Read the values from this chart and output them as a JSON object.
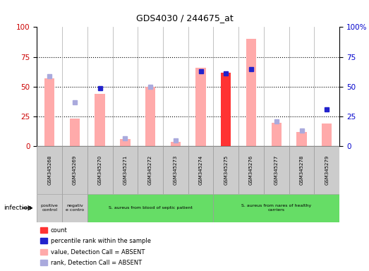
{
  "title": "GDS4030 / 244675_at",
  "samples": [
    "GSM345268",
    "GSM345269",
    "GSM345270",
    "GSM345271",
    "GSM345272",
    "GSM345273",
    "GSM345274",
    "GSM345275",
    "GSM345276",
    "GSM345277",
    "GSM345278",
    "GSM345279"
  ],
  "bar_values": [
    57,
    23,
    44,
    6,
    50,
    4,
    66,
    62,
    90,
    20,
    12,
    19
  ],
  "bar_absent": [
    true,
    true,
    true,
    true,
    true,
    true,
    true,
    false,
    true,
    true,
    true,
    true
  ],
  "rank_values": [
    59,
    37,
    49,
    7,
    50,
    5,
    63,
    61,
    65,
    21,
    13,
    31
  ],
  "rank_absent": [
    true,
    true,
    false,
    true,
    true,
    true,
    false,
    false,
    false,
    true,
    true,
    false
  ],
  "ylim": [
    0,
    100
  ],
  "yticks": [
    0,
    25,
    50,
    75,
    100
  ],
  "groups": [
    {
      "label": "positive\ncontrol",
      "start": 0,
      "end": 1,
      "color": "#cccccc"
    },
    {
      "label": "negativ\ne contro",
      "start": 1,
      "end": 2,
      "color": "#cccccc"
    },
    {
      "label": "S. aureus from blood of septic patient",
      "start": 2,
      "end": 7,
      "color": "#66dd66"
    },
    {
      "label": "S. aureus from nares of healthy\ncarriers",
      "start": 7,
      "end": 12,
      "color": "#66dd66"
    }
  ],
  "infection_label": "infection",
  "bar_color": "#ff3333",
  "bar_absent_color": "#ffaaaa",
  "rank_color": "#2222cc",
  "rank_absent_color": "#aaaadd",
  "legend_items": [
    {
      "color": "#ff3333",
      "label": "count"
    },
    {
      "color": "#2222cc",
      "label": "percentile rank within the sample"
    },
    {
      "color": "#ffaaaa",
      "label": "value, Detection Call = ABSENT"
    },
    {
      "color": "#aaaadd",
      "label": "rank, Detection Call = ABSENT"
    }
  ],
  "bg_color": "#cccccc",
  "tick_color_left": "#cc0000",
  "tick_color_right": "#0000cc",
  "right_ytick_labels": [
    "0",
    "25",
    "50",
    "75",
    "100%"
  ]
}
